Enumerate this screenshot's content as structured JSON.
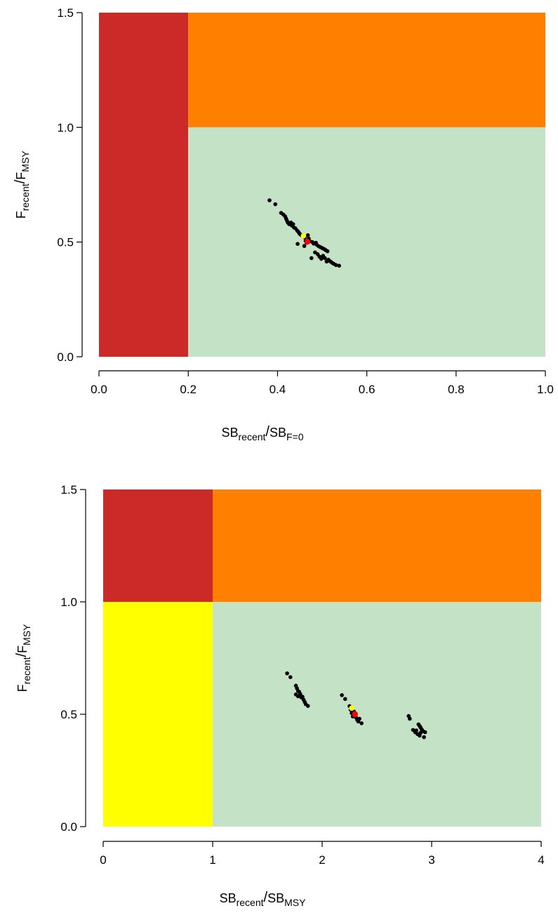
{
  "colors": {
    "red_zone": "#cc2929",
    "orange_zone": "#ff7f00",
    "green_zone": "#c3e2c6",
    "yellow_zone": "#ffff00",
    "points": "#000000",
    "highlight_yellow": "#ffff00",
    "highlight_red": "#ff0000"
  },
  "chart_data": [
    {
      "type": "scatter",
      "title": "",
      "xlabel": {
        "main": "SB",
        "sub": "recent",
        "main2": "SB",
        "sub2": "F=0"
      },
      "ylabel": {
        "main": "F",
        "sub": "recent",
        "main2": "F",
        "sub2": "MSY"
      },
      "xlim": [
        0,
        1.0
      ],
      "ylim": [
        0,
        1.5
      ],
      "xticks": [
        "0.0",
        "0.2",
        "0.4",
        "0.6",
        "0.8",
        "1.0"
      ],
      "xtick_values": [
        0,
        0.2,
        0.4,
        0.6,
        0.8,
        1.0
      ],
      "yticks": [
        "0.0",
        "0.5",
        "1.0",
        "1.5"
      ],
      "ytick_values": [
        0,
        0.5,
        1.0,
        1.5
      ],
      "zones": [
        {
          "x": [
            0,
            0.2
          ],
          "y": [
            0,
            1.5
          ],
          "color": "red_zone"
        },
        {
          "x": [
            0.2,
            1.0
          ],
          "y": [
            1.0,
            1.5
          ],
          "color": "orange_zone"
        },
        {
          "x": [
            0.2,
            1.0
          ],
          "y": [
            0,
            1.0
          ],
          "color": "green_zone"
        }
      ],
      "points": [
        [
          0.382,
          0.682
        ],
        [
          0.395,
          0.665
        ],
        [
          0.408,
          0.627
        ],
        [
          0.413,
          0.62
        ],
        [
          0.417,
          0.612
        ],
        [
          0.419,
          0.603
        ],
        [
          0.421,
          0.594
        ],
        [
          0.423,
          0.585
        ],
        [
          0.426,
          0.578
        ],
        [
          0.43,
          0.585
        ],
        [
          0.432,
          0.572
        ],
        [
          0.435,
          0.578
        ],
        [
          0.437,
          0.563
        ],
        [
          0.44,
          0.56
        ],
        [
          0.444,
          0.55
        ],
        [
          0.447,
          0.544
        ],
        [
          0.449,
          0.537
        ],
        [
          0.452,
          0.532
        ],
        [
          0.445,
          0.492
        ],
        [
          0.455,
          0.528
        ],
        [
          0.458,
          0.525
        ],
        [
          0.461,
          0.52
        ],
        [
          0.463,
          0.505
        ],
        [
          0.465,
          0.497
        ],
        [
          0.46,
          0.483
        ],
        [
          0.468,
          0.53
        ],
        [
          0.47,
          0.515
        ],
        [
          0.472,
          0.504
        ],
        [
          0.478,
          0.5
        ],
        [
          0.481,
          0.493
        ],
        [
          0.484,
          0.455
        ],
        [
          0.486,
          0.497
        ],
        [
          0.488,
          0.488
        ],
        [
          0.49,
          0.447
        ],
        [
          0.492,
          0.482
        ],
        [
          0.494,
          0.436
        ],
        [
          0.496,
          0.478
        ],
        [
          0.498,
          0.427
        ],
        [
          0.5,
          0.474
        ],
        [
          0.502,
          0.44
        ],
        [
          0.504,
          0.47
        ],
        [
          0.506,
          0.43
        ],
        [
          0.508,
          0.465
        ],
        [
          0.51,
          0.415
        ],
        [
          0.512,
          0.46
        ],
        [
          0.514,
          0.423
        ],
        [
          0.518,
          0.416
        ],
        [
          0.522,
          0.41
        ],
        [
          0.526,
          0.405
        ],
        [
          0.531,
          0.4
        ],
        [
          0.538,
          0.397
        ],
        [
          0.476,
          0.43
        ]
      ],
      "highlight_yellow": [
        0.458,
        0.527
      ],
      "highlight_red": [
        0.467,
        0.501
      ]
    },
    {
      "type": "scatter",
      "title": "",
      "xlabel": {
        "main": "SB",
        "sub": "recent",
        "main2": "SB",
        "sub2": "MSY"
      },
      "ylabel": {
        "main": "F",
        "sub": "recent",
        "main2": "F",
        "sub2": "MSY"
      },
      "xlim": [
        0,
        4
      ],
      "ylim": [
        0,
        1.5
      ],
      "xticks": [
        "0",
        "1",
        "2",
        "3",
        "4"
      ],
      "xtick_values": [
        0,
        1,
        2,
        3,
        4
      ],
      "yticks": [
        "0.0",
        "0.5",
        "1.0",
        "1.5"
      ],
      "ytick_values": [
        0,
        0.5,
        1.0,
        1.5
      ],
      "zones": [
        {
          "x": [
            0,
            1
          ],
          "y": [
            1.0,
            1.5
          ],
          "color": "red_zone"
        },
        {
          "x": [
            1,
            4
          ],
          "y": [
            1.0,
            1.5
          ],
          "color": "orange_zone"
        },
        {
          "x": [
            0,
            1
          ],
          "y": [
            0,
            1.0
          ],
          "color": "yellow_zone"
        },
        {
          "x": [
            1,
            4
          ],
          "y": [
            0,
            1.0
          ],
          "color": "green_zone"
        }
      ],
      "points": [
        [
          1.68,
          0.682
        ],
        [
          1.71,
          0.665
        ],
        [
          1.76,
          0.627
        ],
        [
          1.77,
          0.615
        ],
        [
          1.78,
          0.603
        ],
        [
          1.76,
          0.588
        ],
        [
          1.78,
          0.58
        ],
        [
          1.8,
          0.59
        ],
        [
          1.81,
          0.575
        ],
        [
          1.82,
          0.578
        ],
        [
          1.83,
          0.565
        ],
        [
          1.84,
          0.555
        ],
        [
          1.85,
          0.545
        ],
        [
          1.87,
          0.537
        ],
        [
          1.79,
          0.6
        ],
        [
          2.18,
          0.585
        ],
        [
          2.21,
          0.568
        ],
        [
          2.25,
          0.536
        ],
        [
          2.26,
          0.52
        ],
        [
          2.27,
          0.505
        ],
        [
          2.28,
          0.49
        ],
        [
          2.3,
          0.497
        ],
        [
          2.31,
          0.485
        ],
        [
          2.32,
          0.475
        ],
        [
          2.33,
          0.468
        ],
        [
          2.36,
          0.46
        ],
        [
          2.29,
          0.512
        ],
        [
          2.34,
          0.48
        ],
        [
          2.79,
          0.492
        ],
        [
          2.8,
          0.48
        ],
        [
          2.83,
          0.43
        ],
        [
          2.85,
          0.42
        ],
        [
          2.86,
          0.428
        ],
        [
          2.87,
          0.412
        ],
        [
          2.88,
          0.455
        ],
        [
          2.89,
          0.448
        ],
        [
          2.89,
          0.405
        ],
        [
          2.9,
          0.44
        ],
        [
          2.91,
          0.432
        ],
        [
          2.92,
          0.425
        ],
        [
          2.93,
          0.398
        ],
        [
          2.94,
          0.42
        ],
        [
          2.9,
          0.418
        ]
      ],
      "highlight_yellow": [
        2.27,
        0.527
      ],
      "highlight_red": [
        2.3,
        0.5
      ]
    }
  ]
}
